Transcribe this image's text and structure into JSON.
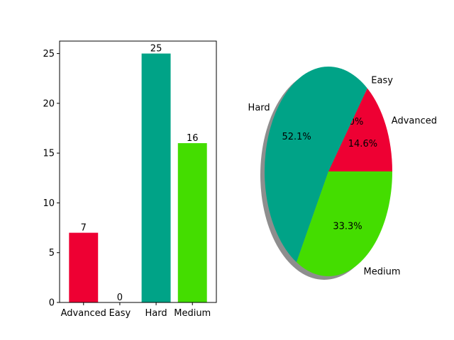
{
  "chart_data": [
    {
      "type": "bar",
      "categories": [
        "Advanced",
        "Easy",
        "Hard",
        "Medium"
      ],
      "values": [
        7,
        0,
        25,
        16
      ],
      "colors": [
        "#ee0033",
        "#00a387",
        "#00a387",
        "#44dd00"
      ],
      "ylim": [
        0,
        26.25
      ],
      "yticks": [
        0,
        5,
        10,
        15,
        20,
        25
      ],
      "data_labels": [
        "7",
        "0",
        "25",
        "16"
      ],
      "title": "",
      "xlabel": "",
      "ylabel": ""
    },
    {
      "type": "pie",
      "categories": [
        "Advanced",
        "Easy",
        "Hard",
        "Medium"
      ],
      "values": [
        7,
        0,
        25,
        16
      ],
      "colors": [
        "#ee0033",
        "#00a387",
        "#00a387",
        "#44dd00"
      ],
      "percent_labels": [
        "14.6%",
        "0.0%",
        "52.1%",
        "33.3%"
      ],
      "start_angle_deg": 0,
      "shadow": true
    }
  ]
}
